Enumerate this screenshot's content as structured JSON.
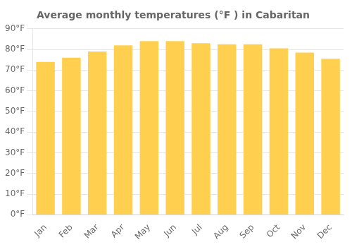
{
  "chart_data": {
    "type": "bar",
    "title": "Average monthly temperatures (°F ) in Cabaritan",
    "categories": [
      "Jan",
      "Feb",
      "Mar",
      "Apr",
      "May",
      "Jun",
      "Jul",
      "Aug",
      "Sep",
      "Oct",
      "Nov",
      "Dec"
    ],
    "values": [
      74,
      76,
      79,
      82,
      84,
      84,
      83,
      82.5,
      82.5,
      80.5,
      78.5,
      75.5
    ],
    "color": "#FFD050",
    "ylim": [
      0,
      90
    ],
    "yticks": [
      {
        "value": 0,
        "label": "0°F"
      },
      {
        "value": 10,
        "label": "10°F"
      },
      {
        "value": 20,
        "label": "20°F"
      },
      {
        "value": 30,
        "label": "30°F"
      },
      {
        "value": 40,
        "label": "40°F"
      },
      {
        "value": 50,
        "label": "50°F"
      },
      {
        "value": 60,
        "label": "60°F"
      },
      {
        "value": 70,
        "label": "70°F"
      },
      {
        "value": 80,
        "label": "80°F"
      },
      {
        "value": 90,
        "label": "90°F"
      }
    ],
    "grid": true
  }
}
